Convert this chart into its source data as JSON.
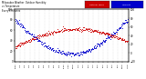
{
  "title": "Milwaukee Weather  Outdoor Humidity  vs Temperature  Every 5 Minutes",
  "legend_humidity": "Humidity",
  "legend_temp": "Outdoor Temp",
  "bg_color": "#ffffff",
  "plot_bg": "#ffffff",
  "grid_color": "#c0c0c0",
  "humidity_color": "#0000cc",
  "temp_color": "#cc0000",
  "legend_humidity_bg": "#0000cc",
  "legend_temp_bg": "#cc0000",
  "ylim_left": [
    0,
    100
  ],
  "ylim_right": [
    -20,
    100
  ],
  "yticks_left": [
    0,
    20,
    40,
    60,
    80,
    100
  ],
  "yticks_right": [
    -20,
    0,
    20,
    40,
    60,
    80,
    100
  ],
  "n_points": 288,
  "dot_size": 0.4
}
